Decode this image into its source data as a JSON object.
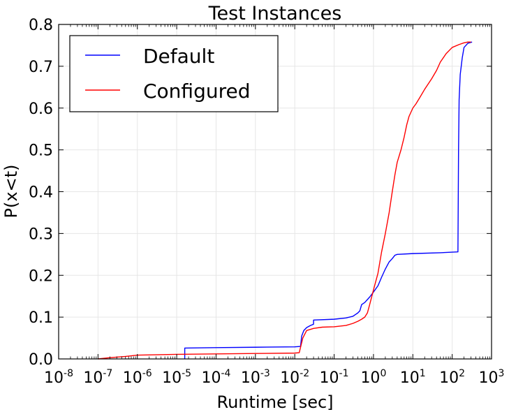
{
  "chart_data": {
    "type": "line",
    "title": "Test Instances",
    "xlabel": "Runtime [sec]",
    "ylabel": "P(x<t)",
    "x_scale": "log",
    "xlim": [
      1e-08,
      1000
    ],
    "ylim": [
      0.0,
      0.8
    ],
    "x_ticks": [
      {
        "base": "10",
        "exp": "-8",
        "value": 1e-08
      },
      {
        "base": "10",
        "exp": "-7",
        "value": 1e-07
      },
      {
        "base": "10",
        "exp": "-6",
        "value": 1e-06
      },
      {
        "base": "10",
        "exp": "-5",
        "value": 1e-05
      },
      {
        "base": "10",
        "exp": "-4",
        "value": 0.0001
      },
      {
        "base": "10",
        "exp": "-3",
        "value": 0.001
      },
      {
        "base": "10",
        "exp": "-2",
        "value": 0.01
      },
      {
        "base": "10",
        "exp": "-1",
        "value": 0.1
      },
      {
        "base": "10",
        "exp": "0",
        "value": 1
      },
      {
        "base": "10",
        "exp": "1",
        "value": 10
      },
      {
        "base": "10",
        "exp": "2",
        "value": 100
      },
      {
        "base": "10",
        "exp": "3",
        "value": 1000
      }
    ],
    "y_ticks": [
      "0.0",
      "0.1",
      "0.2",
      "0.3",
      "0.4",
      "0.5",
      "0.6",
      "0.7",
      "0.8"
    ],
    "y_tick_values": [
      0.0,
      0.1,
      0.2,
      0.3,
      0.4,
      0.5,
      0.6,
      0.7,
      0.8
    ],
    "grid": true,
    "legend_position": "top-left",
    "series": [
      {
        "name": "Default",
        "color": "#0000ff",
        "x": [
          1.6e-05,
          1.6e-05,
          0.0001,
          0.001,
          0.01,
          0.014,
          0.015,
          0.017,
          0.02,
          0.025,
          0.03,
          0.03,
          0.1,
          0.2,
          0.3,
          0.4,
          0.45,
          0.5,
          0.6,
          0.7,
          0.8,
          1.0,
          1.3,
          1.6,
          2.0,
          2.5,
          3.0,
          3.5,
          4.0,
          10,
          50,
          140,
          145,
          150,
          160,
          180,
          200,
          250,
          320
        ],
        "y": [
          0.0,
          0.026,
          0.027,
          0.028,
          0.029,
          0.03,
          0.055,
          0.068,
          0.075,
          0.08,
          0.083,
          0.093,
          0.095,
          0.098,
          0.102,
          0.11,
          0.115,
          0.13,
          0.135,
          0.142,
          0.148,
          0.16,
          0.175,
          0.195,
          0.215,
          0.232,
          0.24,
          0.248,
          0.25,
          0.252,
          0.254,
          0.256,
          0.5,
          0.62,
          0.68,
          0.72,
          0.745,
          0.755,
          0.758
        ]
      },
      {
        "name": "Configured",
        "color": "#ff0000",
        "x": [
          1e-07,
          2e-07,
          5e-07,
          1e-06,
          1e-05,
          0.0001,
          0.001,
          0.01,
          0.013,
          0.016,
          0.02,
          0.03,
          0.05,
          0.1,
          0.2,
          0.3,
          0.4,
          0.5,
          0.6,
          0.7,
          0.8,
          1.0,
          1.3,
          1.6,
          2.0,
          2.5,
          3.0,
          3.5,
          4.0,
          5.0,
          6.0,
          7.0,
          8.0,
          10,
          12,
          15,
          20,
          30,
          40,
          50,
          70,
          100,
          150,
          200,
          250,
          300
        ],
        "y": [
          0.0,
          0.003,
          0.006,
          0.009,
          0.011,
          0.012,
          0.013,
          0.014,
          0.015,
          0.05,
          0.068,
          0.073,
          0.076,
          0.077,
          0.08,
          0.085,
          0.09,
          0.095,
          0.1,
          0.11,
          0.13,
          0.165,
          0.205,
          0.255,
          0.3,
          0.35,
          0.4,
          0.44,
          0.47,
          0.5,
          0.53,
          0.56,
          0.58,
          0.6,
          0.61,
          0.625,
          0.645,
          0.67,
          0.69,
          0.71,
          0.73,
          0.745,
          0.752,
          0.756,
          0.758,
          0.758
        ]
      }
    ]
  }
}
